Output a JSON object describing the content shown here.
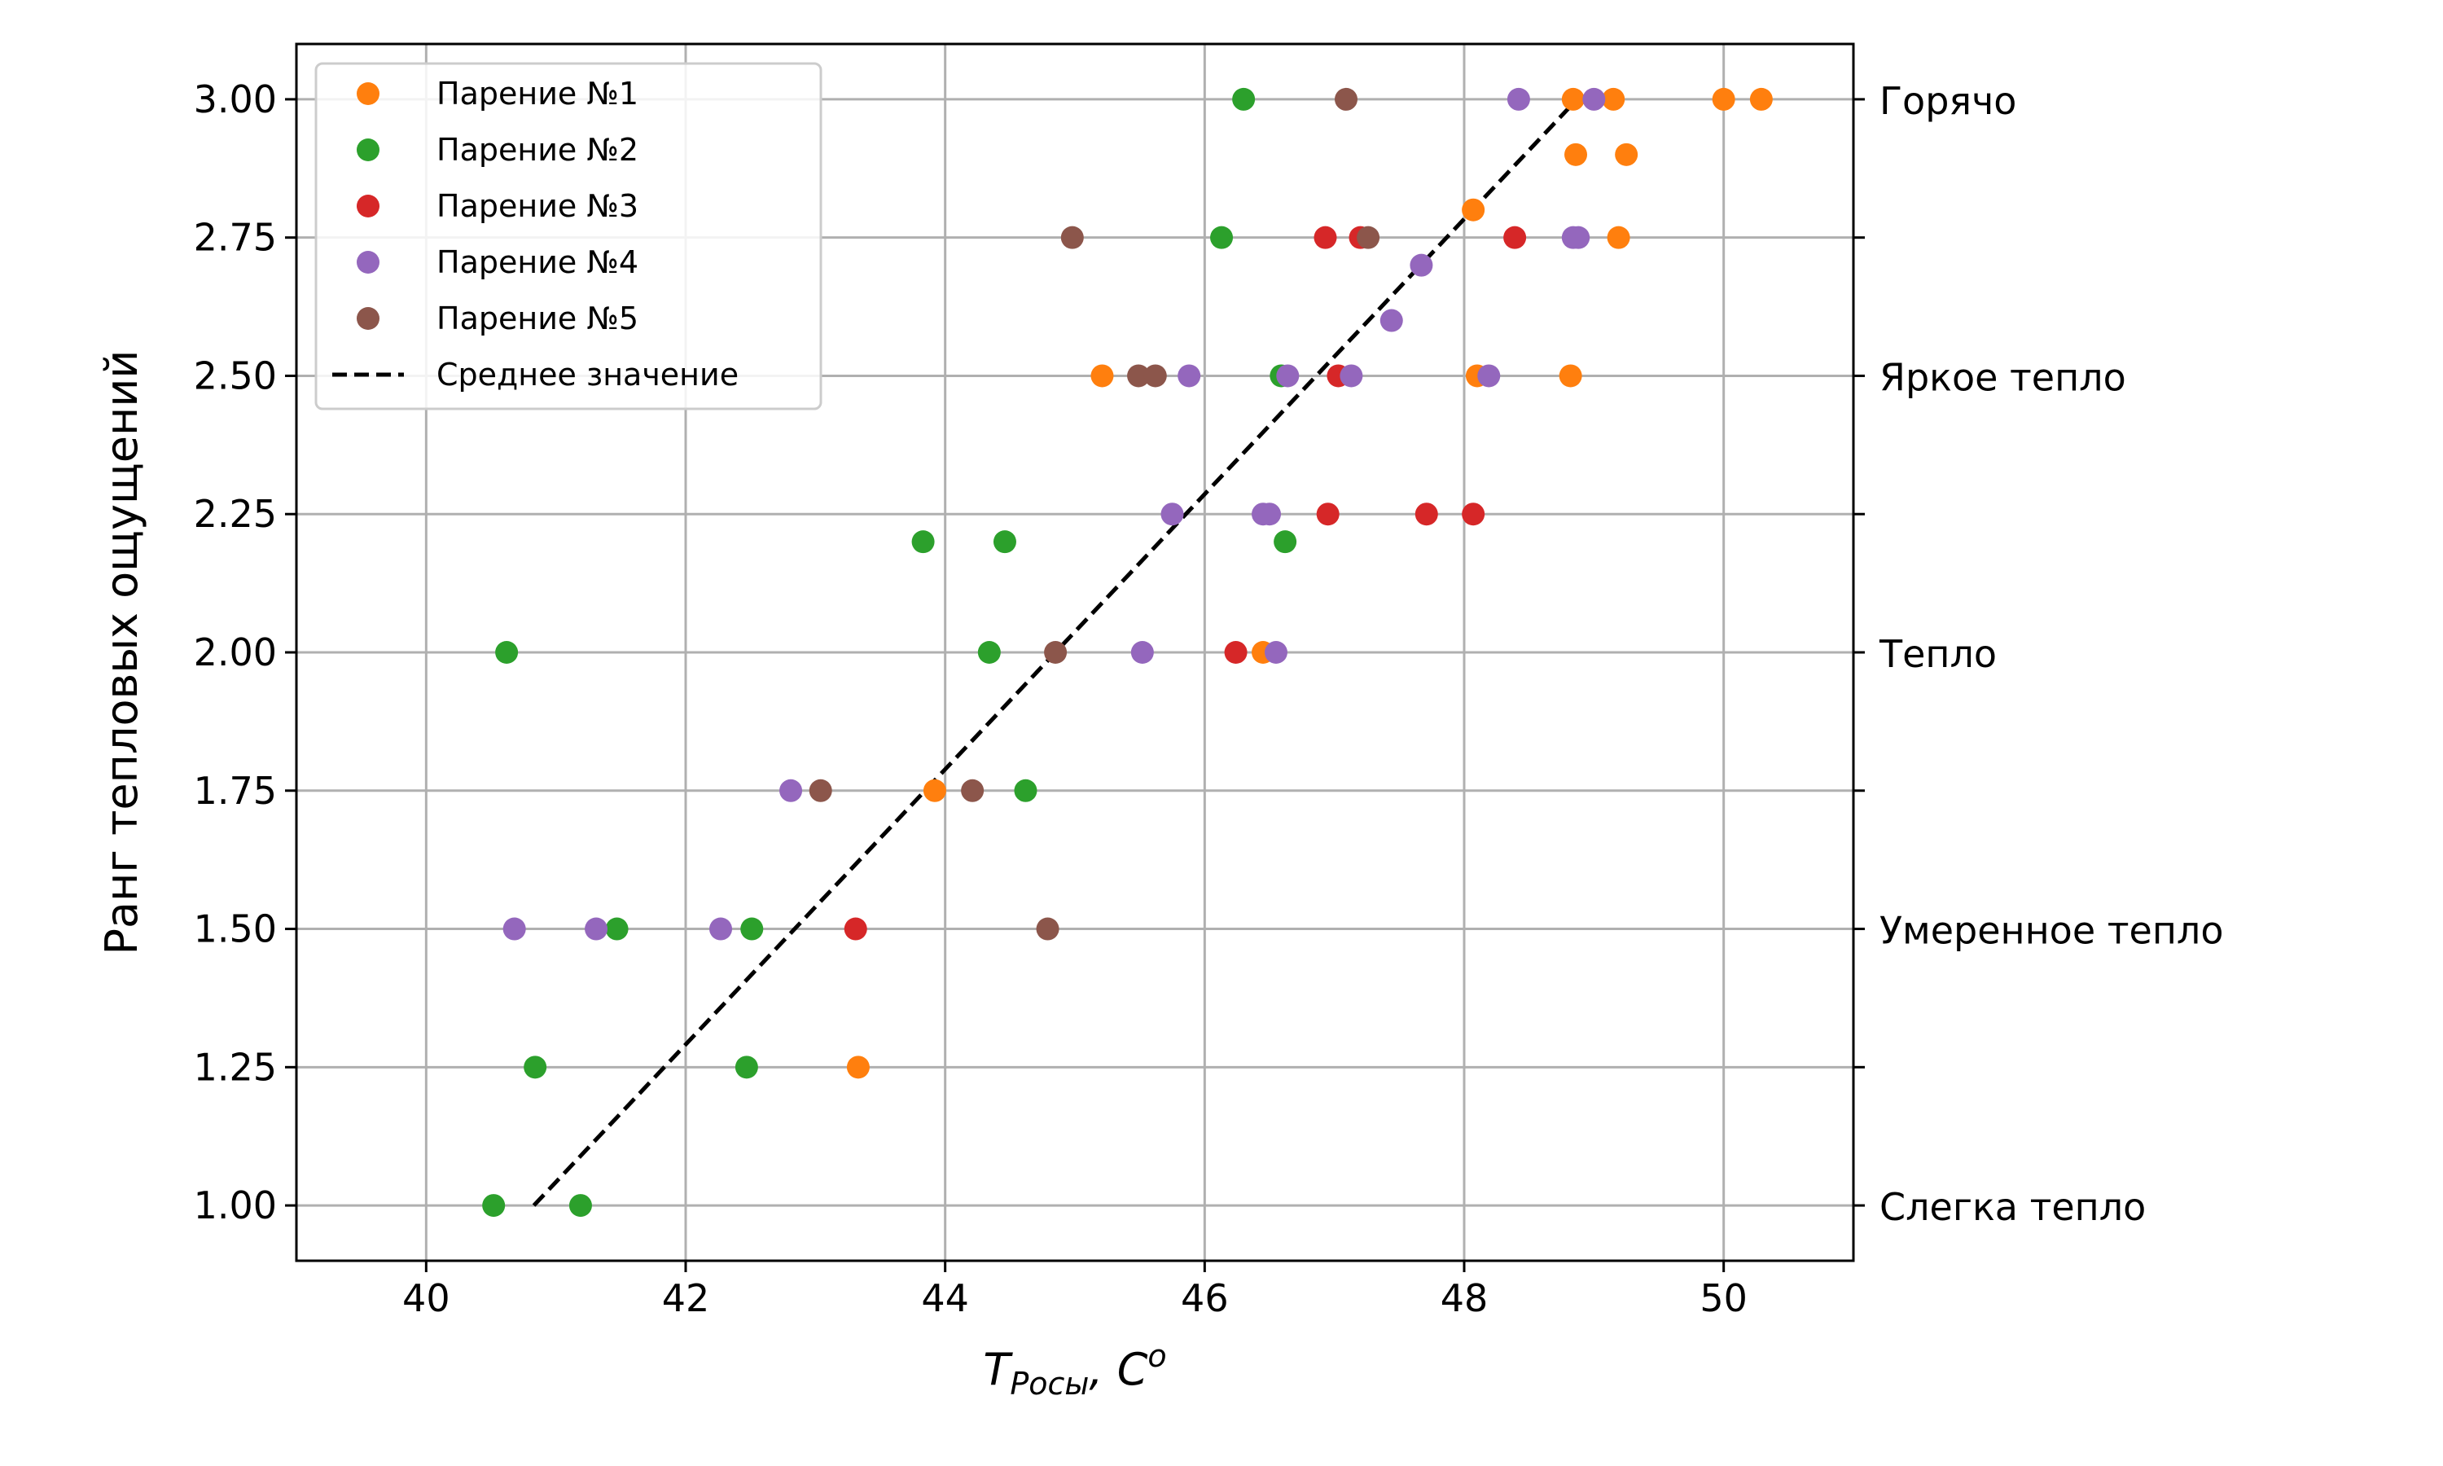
{
  "chart_data": {
    "type": "scatter",
    "title": "",
    "xlabel": "T_Росы, C^o",
    "xlabel_main": "T",
    "xlabel_sub": "Росы",
    "xlabel_rest": ", C",
    "xlabel_sup": "o",
    "ylabel": "Ранг тепловых ощущений",
    "xlim": [
      39,
      51
    ],
    "ylim": [
      0.9,
      3.1
    ],
    "grid": true,
    "legend_position": "top-left",
    "xticks": [
      40,
      42,
      44,
      46,
      48,
      50
    ],
    "xtick_labels": [
      "40",
      "42",
      "44",
      "46",
      "48",
      "50"
    ],
    "yticks": [
      1.0,
      1.25,
      1.5,
      1.75,
      2.0,
      2.25,
      2.5,
      2.75,
      3.0
    ],
    "ytick_labels": [
      "1.00",
      "1.25",
      "1.50",
      "1.75",
      "2.00",
      "2.25",
      "2.50",
      "2.75",
      "3.00"
    ],
    "right_axis_labels": [
      {
        "y": 3.0,
        "text": "Горячо"
      },
      {
        "y": 2.5,
        "text": "Яркое тепло"
      },
      {
        "y": 2.0,
        "text": "Тепло"
      },
      {
        "y": 1.5,
        "text": "Умеренное  тепло"
      },
      {
        "y": 1.0,
        "text": "Слегка тепло"
      }
    ],
    "right_axis_ticks": [
      1.0,
      1.25,
      1.5,
      1.75,
      2.0,
      2.25,
      2.5,
      2.75,
      3.0
    ],
    "series": [
      {
        "name": "Парение №1",
        "color": "#ff7f0e",
        "points": [
          [
            50.29,
            3.0
          ],
          [
            50.0,
            3.0
          ],
          [
            49.15,
            3.0
          ],
          [
            48.84,
            3.0
          ],
          [
            48.86,
            2.9
          ],
          [
            49.25,
            2.9
          ],
          [
            48.07,
            2.8
          ],
          [
            49.19,
            2.75
          ],
          [
            45.21,
            2.5
          ],
          [
            48.1,
            2.5
          ],
          [
            48.82,
            2.5
          ],
          [
            46.45,
            2.0
          ],
          [
            43.92,
            1.75
          ],
          [
            43.33,
            1.25
          ]
        ]
      },
      {
        "name": "Парение №2",
        "color": "#2ca02c",
        "points": [
          [
            46.3,
            3.0
          ],
          [
            46.13,
            2.75
          ],
          [
            46.59,
            2.5
          ],
          [
            43.83,
            2.2
          ],
          [
            44.46,
            2.2
          ],
          [
            46.62,
            2.2
          ],
          [
            40.62,
            2.0
          ],
          [
            44.34,
            2.0
          ],
          [
            44.62,
            1.75
          ],
          [
            41.47,
            1.5
          ],
          [
            42.51,
            1.5
          ],
          [
            40.84,
            1.25
          ],
          [
            42.47,
            1.25
          ],
          [
            40.52,
            1.0
          ],
          [
            41.19,
            1.0
          ]
        ]
      },
      {
        "name": "Парение №3",
        "color": "#d62728",
        "points": [
          [
            46.93,
            2.75
          ],
          [
            47.2,
            2.75
          ],
          [
            48.39,
            2.75
          ],
          [
            47.03,
            2.5
          ],
          [
            46.95,
            2.25
          ],
          [
            47.71,
            2.25
          ],
          [
            48.07,
            2.25
          ],
          [
            46.24,
            2.0
          ],
          [
            43.31,
            1.5
          ]
        ]
      },
      {
        "name": "Парение №4",
        "color": "#9467bd",
        "points": [
          [
            48.42,
            3.0
          ],
          [
            49.0,
            3.0
          ],
          [
            47.67,
            2.7
          ],
          [
            47.44,
            2.6
          ],
          [
            48.84,
            2.75
          ],
          [
            48.88,
            2.75
          ],
          [
            45.88,
            2.5
          ],
          [
            46.64,
            2.5
          ],
          [
            47.13,
            2.5
          ],
          [
            48.19,
            2.5
          ],
          [
            45.75,
            2.25
          ],
          [
            46.45,
            2.25
          ],
          [
            46.5,
            2.25
          ],
          [
            45.52,
            2.0
          ],
          [
            46.55,
            2.0
          ],
          [
            42.81,
            1.75
          ],
          [
            40.68,
            1.5
          ],
          [
            41.31,
            1.5
          ],
          [
            42.27,
            1.5
          ]
        ]
      },
      {
        "name": "Парение №5",
        "color": "#8c564b",
        "points": [
          [
            47.09,
            3.0
          ],
          [
            44.98,
            2.75
          ],
          [
            47.26,
            2.75
          ],
          [
            45.49,
            2.5
          ],
          [
            45.62,
            2.5
          ],
          [
            44.85,
            2.0
          ],
          [
            43.04,
            1.75
          ],
          [
            44.21,
            1.75
          ],
          [
            44.79,
            1.5
          ]
        ]
      }
    ],
    "mean_line": {
      "name": "Среднее значение",
      "color": "#000000",
      "style": "dashed",
      "points": [
        [
          40.83,
          1.0
        ],
        [
          48.87,
          3.0
        ]
      ]
    }
  }
}
